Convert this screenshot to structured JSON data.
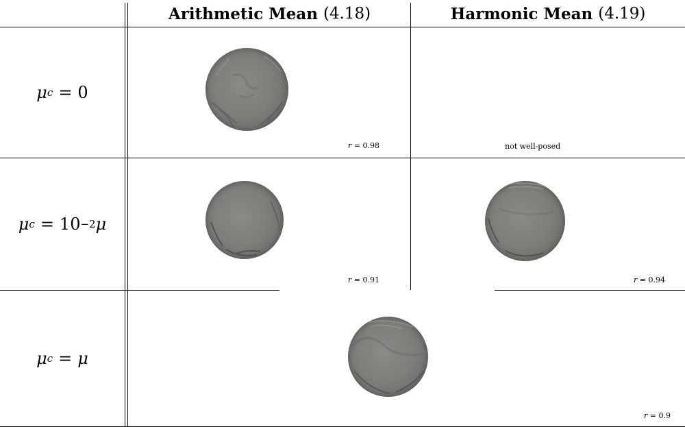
{
  "table": {
    "columns": [
      {
        "title": "Arithmetic Mean",
        "ref": "(4.18)"
      },
      {
        "title": "Harmonic Mean",
        "ref": "(4.19)"
      }
    ],
    "rows": [
      {
        "label": {
          "var": "μ",
          "sub": "c",
          "rhs": "0"
        },
        "cells": [
          {
            "caption_var": "r",
            "caption_value": "= 0.98",
            "surface": "wrinkled-disc"
          },
          {
            "caption_text": "not well-posed"
          }
        ]
      },
      {
        "label": {
          "var": "μ",
          "sub": "c",
          "rhs_base": "10",
          "rhs_exp": "−2",
          "rhs_var": "μ"
        },
        "cells": [
          {
            "caption_var": "r",
            "caption_value": "= 0.91",
            "surface": "wrinkled-disc"
          },
          {
            "caption_var": "r",
            "caption_value": "= 0.94",
            "surface": "wrinkled-disc"
          }
        ]
      },
      {
        "label": {
          "var": "μ",
          "sub": "c",
          "rhs_var": "μ"
        },
        "cells": [
          {
            "caption_var": "r",
            "caption_value": "= 0.9",
            "surface": "wrinkled-disc"
          }
        ]
      }
    ]
  },
  "colors": {
    "rule": "#000000",
    "surface": "#7e7e7a",
    "background": "#ffffff"
  }
}
